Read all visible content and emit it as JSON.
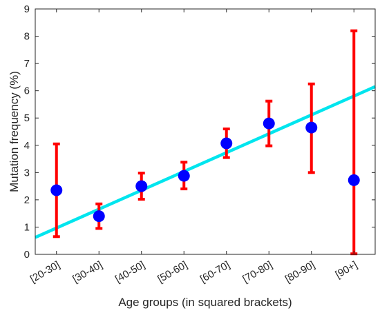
{
  "chart_data": {
    "type": "scatter",
    "title": "",
    "xlabel": "Age groups (in squared brackets)",
    "ylabel": "Mutation frequency (%)",
    "ylim": [
      0,
      9
    ],
    "yticks": [
      0,
      1,
      2,
      3,
      4,
      5,
      6,
      7,
      8,
      9
    ],
    "xlim": [
      0.5,
      8.5
    ],
    "categories": [
      "[20-30]",
      "[30-40]",
      "[40-50]",
      "[50-60]",
      "[60-70]",
      "[70-80]",
      "[80-90]",
      "[90+]"
    ],
    "grid": false,
    "series": [
      {
        "kind": "points_with_error_bars",
        "color": "#0000ff",
        "error_color": "#ff0000",
        "values": [
          2.35,
          1.4,
          2.5,
          2.88,
          4.07,
          4.8,
          4.65,
          2.72
        ],
        "lower": [
          0.65,
          0.95,
          2.02,
          2.4,
          3.55,
          3.98,
          3.0,
          0.02
        ],
        "upper": [
          4.05,
          1.85,
          2.98,
          3.38,
          4.6,
          5.62,
          6.25,
          8.2
        ]
      },
      {
        "kind": "trend_line",
        "color": "#00e5ee",
        "x": [
          0.5,
          8.5
        ],
        "y": [
          0.62,
          6.15
        ]
      }
    ]
  }
}
